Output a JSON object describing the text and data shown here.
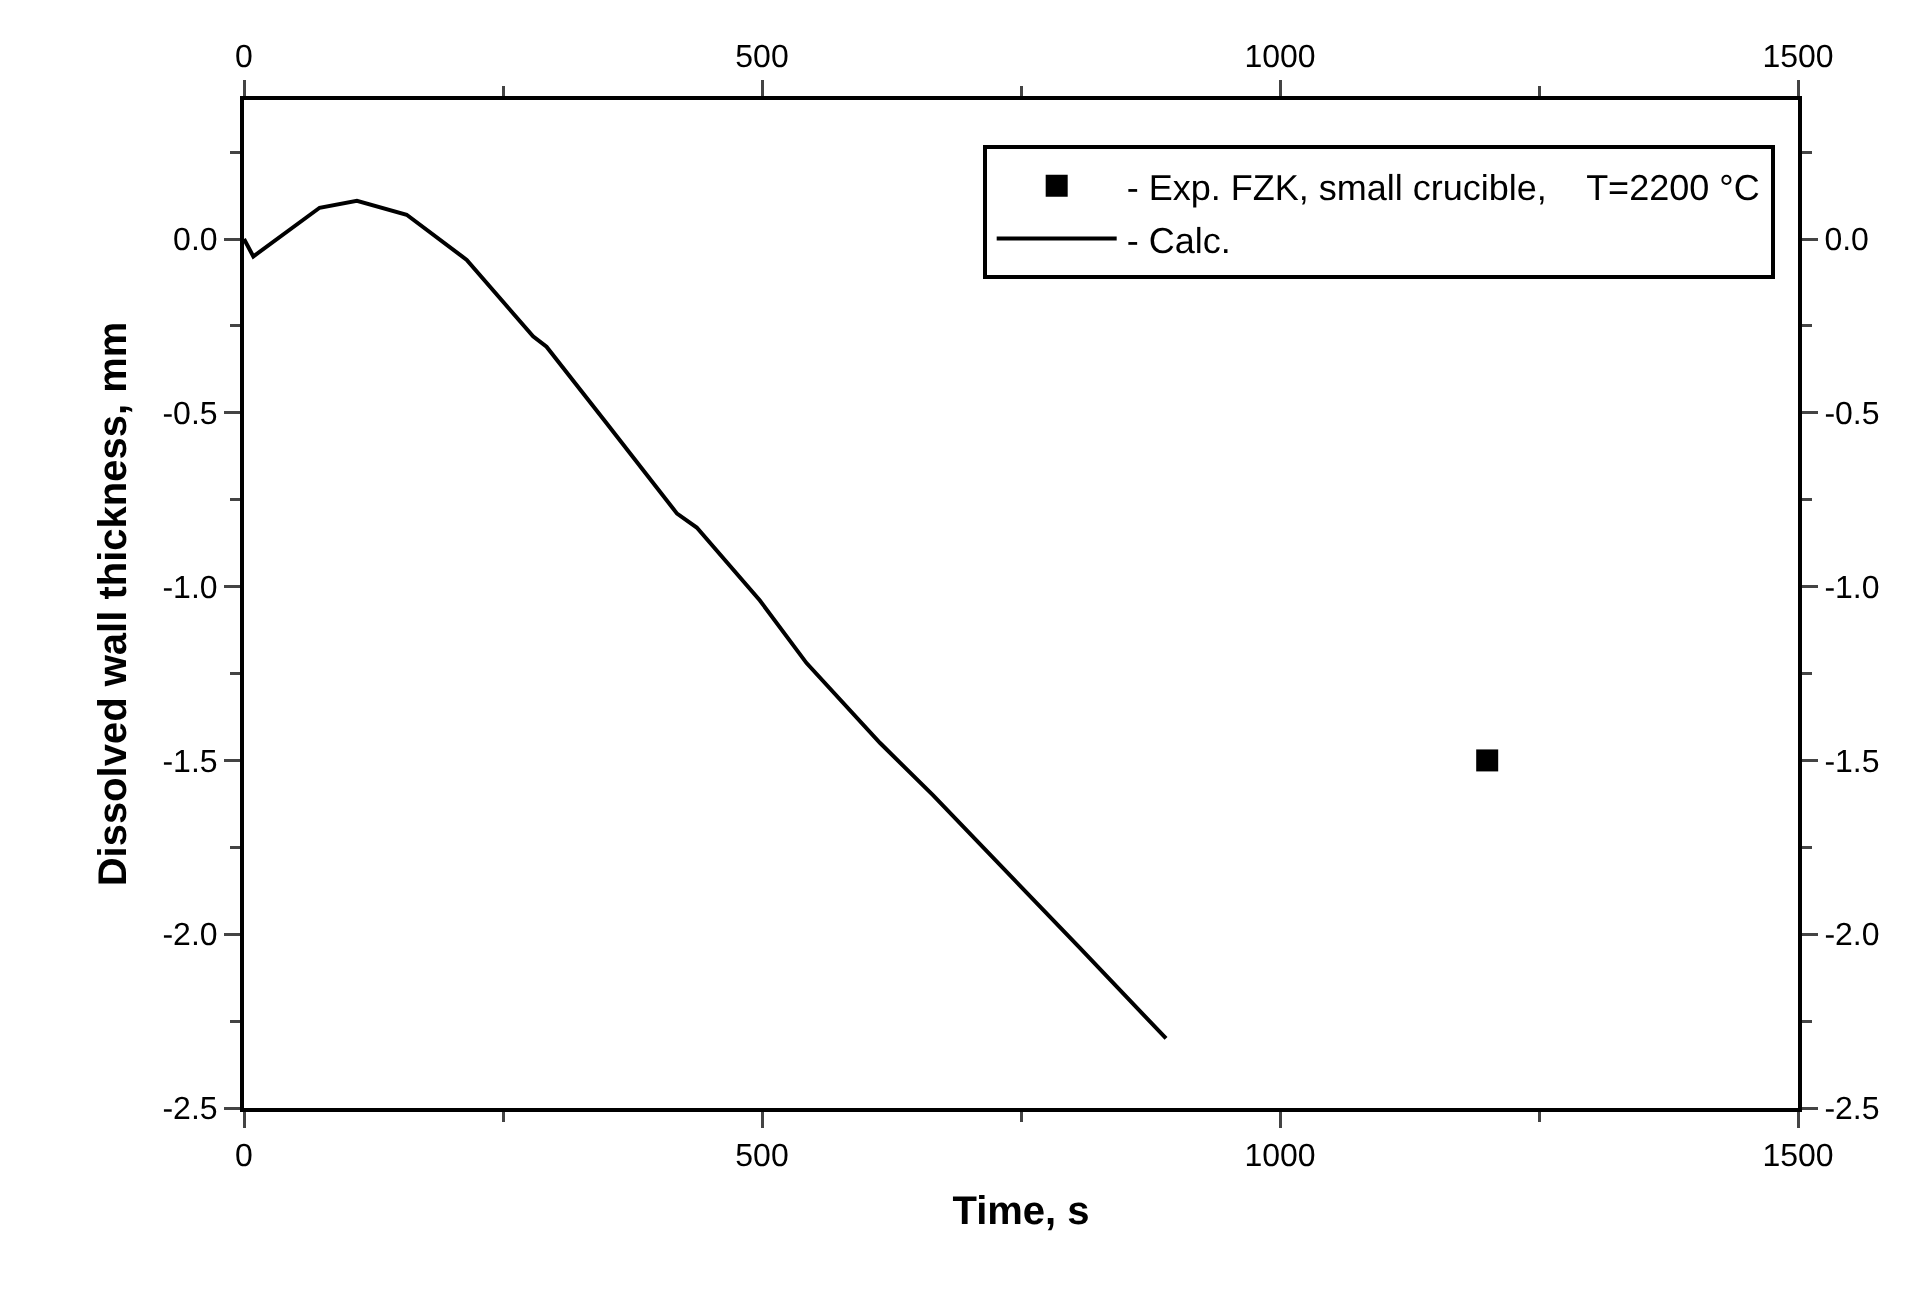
{
  "chart_data": {
    "type": "line",
    "xlabel": "Time, s",
    "ylabel": "Dissolved wall thickness, mm",
    "xlim": [
      0,
      1500
    ],
    "xticks": [
      0,
      {
        "value": 250,
        "label": null
      },
      500,
      {
        "value": 750,
        "label": null
      },
      1000,
      {
        "value": 1250,
        "label": null
      },
      1500
    ],
    "ylim": [
      -2.5,
      0.4
    ],
    "yticks": [
      {
        "value": -2.5,
        "label": "-2.5"
      },
      {
        "value": -2.25,
        "label": null
      },
      {
        "value": -2,
        "label": "-2.0"
      },
      {
        "value": -1.75,
        "label": null
      },
      {
        "value": -1.5,
        "label": "-1.5"
      },
      {
        "value": -1.25,
        "label": null
      },
      {
        "value": -1,
        "label": "-1.0"
      },
      {
        "value": -0.75,
        "label": null
      },
      {
        "value": -0.5,
        "label": "-0.5"
      },
      {
        "value": -0.25,
        "label": null
      },
      {
        "value": 0,
        "label": "0.0"
      },
      {
        "value": 0.25,
        "label": null
      }
    ],
    "x2lim": [
      0,
      1500
    ],
    "x2ticks": [
      0,
      {
        "value": 250,
        "label": null
      },
      500,
      {
        "value": 750,
        "label": null
      },
      1000,
      {
        "value": 1250,
        "label": null
      },
      1500
    ],
    "y2lim": [
      -2.5,
      0.4
    ],
    "y2ticks": [
      {
        "value": -2.5,
        "label": "-2.5"
      },
      {
        "value": -2.25,
        "label": null
      },
      {
        "value": -2,
        "label": "-2.0"
      },
      {
        "value": -1.75,
        "label": null
      },
      {
        "value": -1.5,
        "label": "-1.5"
      },
      {
        "value": -1.25,
        "label": null
      },
      {
        "value": -1,
        "label": "-1.0"
      },
      {
        "value": -0.75,
        "label": null
      },
      {
        "value": -0.5,
        "label": "-0.5"
      },
      {
        "value": -0.25,
        "label": null
      },
      {
        "value": 0,
        "label": "0.0"
      },
      {
        "value": 0.25,
        "label": null
      }
    ],
    "grid": false,
    "legend": "top right",
    "series": [
      {
        "name": "- Exp. FZK, small crucible,    T=2200 °C",
        "type": "scatter",
        "marker": "square",
        "color": "#000000",
        "x": [
          1200
        ],
        "values": [
          -1.5
        ]
      },
      {
        "name": "- Calc.",
        "marker": "none",
        "line_style": "solid",
        "color": "#000000",
        "x": [
          0,
          9,
          73,
          109,
          157,
          215,
          279,
          292,
          350,
          418,
          437,
          498,
          543,
          614,
          665,
          807,
          890
        ],
        "values": [
          0,
          -0.05,
          0.09,
          0.11,
          0.07,
          -0.06,
          -0.28,
          -0.31,
          -0.53,
          -0.79,
          -0.83,
          -1.04,
          -1.22,
          -1.45,
          -1.6,
          -2.04,
          -2.3
        ]
      }
    ]
  }
}
